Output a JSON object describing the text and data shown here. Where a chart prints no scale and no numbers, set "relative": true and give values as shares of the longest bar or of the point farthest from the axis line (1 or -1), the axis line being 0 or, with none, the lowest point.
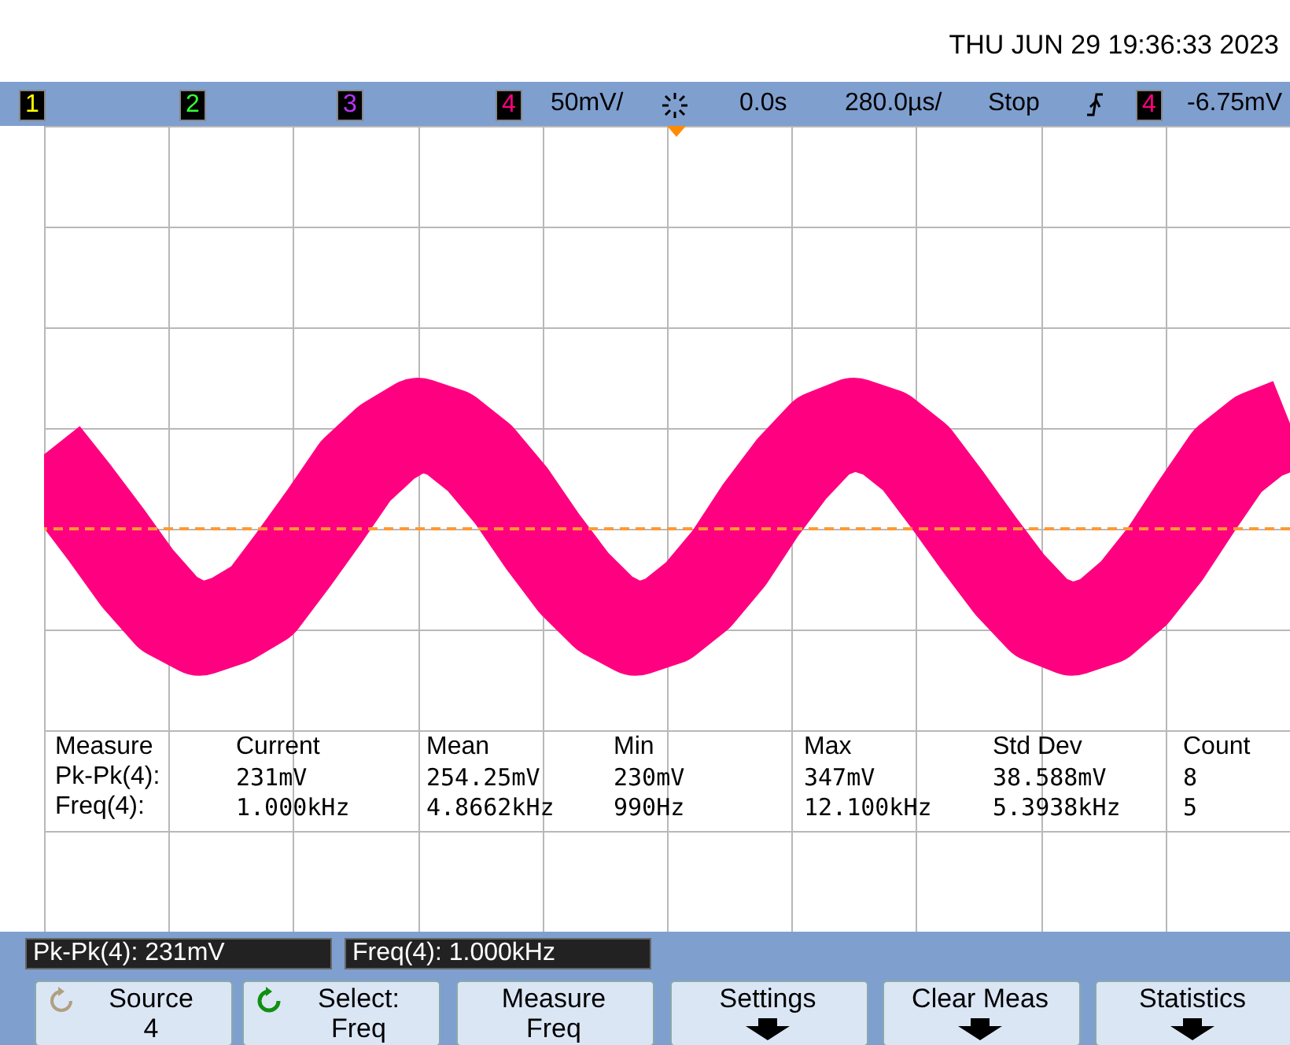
{
  "chart_data": {
    "type": "line",
    "relative": true,
    "categories": [
      null,
      null,
      null,
      null,
      null,
      null,
      null,
      null,
      null,
      null,
      null,
      null,
      null,
      null,
      null,
      null,
      null,
      null,
      null,
      null,
      null,
      null,
      null,
      null,
      null,
      null,
      null,
      null,
      null,
      null,
      null,
      null,
      null,
      null,
      null,
      null,
      null,
      null,
      null,
      null,
      null
    ],
    "grid": true,
    "series": [
      {
        "color": "#ff0080",
        "values": [
          0.85,
          0.66,
          0.46,
          0.25,
          0.08,
          0,
          0.05,
          0.14,
          0.34,
          0.55,
          0.77,
          0.91,
          1,
          0.95,
          0.83,
          0.65,
          0.43,
          0.23,
          0.08,
          0,
          0.05,
          0.17,
          0.35,
          0.58,
          0.78,
          0.94,
          1,
          0.95,
          0.83,
          0.63,
          0.42,
          0.22,
          0.06,
          0,
          0.05,
          0.18,
          0.37,
          0.6,
          0.82,
          0.94,
          1
        ]
      }
    ],
    "ref_lines": [
      {
        "axis": "y",
        "value": 0.49,
        "color": "#ff9933",
        "line_style": "dashed"
      }
    ],
    "annotations": [
      "THU JUN 29 19:36:33 2023",
      "1",
      "2",
      "3",
      "4",
      "50mV/",
      "0.0s",
      "280.0µs/",
      "Stop",
      "4",
      "-6.75mV",
      "Measure",
      "Current",
      "Mean",
      "Min",
      "Max",
      "Std Dev",
      "Count",
      "Pk-Pk(4):",
      "231mV",
      "254.25mV",
      "230mV",
      "347mV",
      "38.588mV",
      "8",
      "Freq(4):",
      "1.000kHz",
      "4.8662kHz",
      "990Hz",
      "12.100kHz",
      "5.3938kHz",
      "5",
      "Pk-Pk(4): 231mV",
      "Freq(4): 1.000kHz",
      "Source",
      "4",
      "Select:",
      "Freq",
      "Measure",
      "Freq",
      "Settings",
      "Clear Meas",
      "Statistics"
    ]
  }
}
